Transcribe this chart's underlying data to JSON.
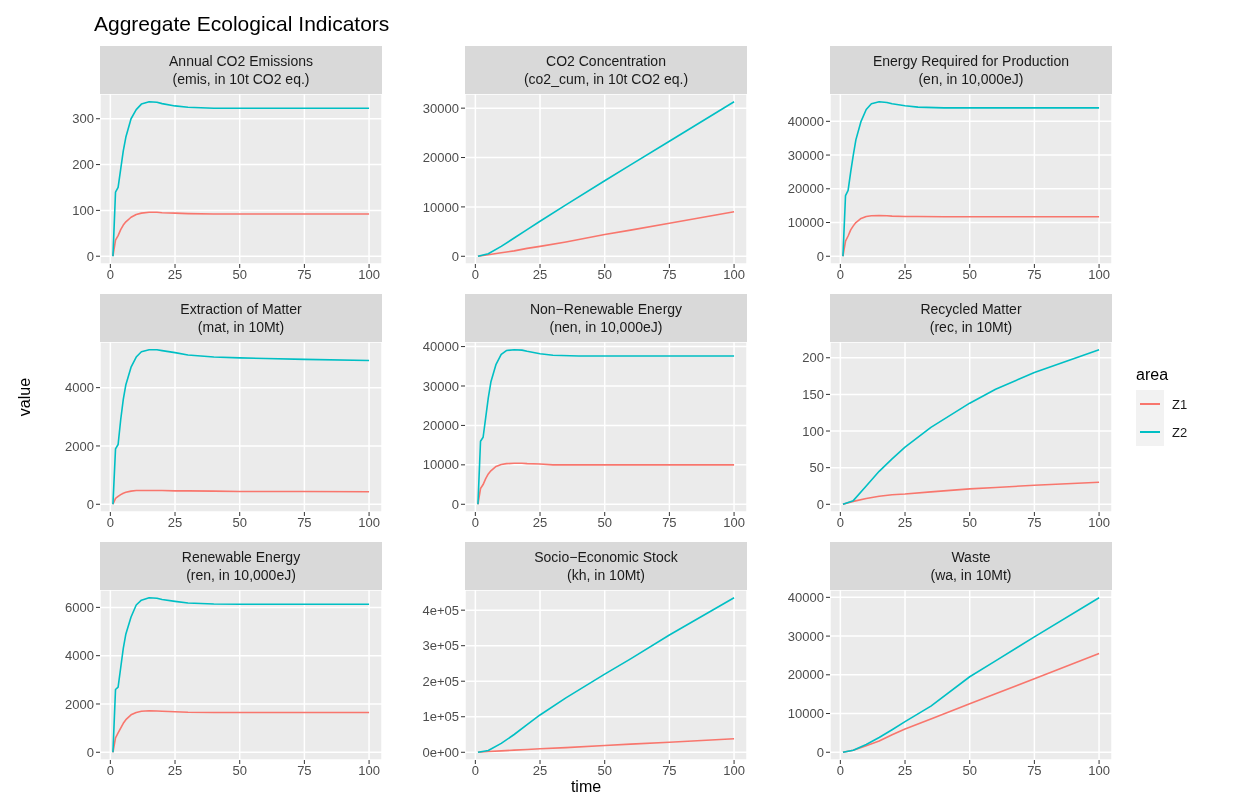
{
  "chart_data": [
    {
      "type": "line",
      "title": "Annual CO2 Emissions\n(emis, in 10t CO2 eq.)",
      "legend": "right",
      "legend_title": "area",
      "annotations": [
        "Aggregate Ecological Indicators"
      ],
      "grid": true,
      "xlim": [
        -4,
        105
      ],
      "xticks": [
        0,
        25,
        50,
        75,
        100
      ],
      "ylim": [
        -17,
        354
      ],
      "yticks": [
        0,
        100,
        200,
        300
      ],
      "x": [
        1,
        2,
        3,
        4,
        5,
        6,
        8,
        10,
        12,
        15,
        18,
        20,
        25,
        30,
        40,
        50,
        60,
        75,
        100
      ],
      "series": [
        {
          "name": "Z1",
          "color": "#f8766d",
          "values": [
            0,
            35,
            45,
            58,
            68,
            75,
            85,
            91,
            94,
            96,
            96,
            95,
            94,
            93,
            92,
            92,
            92,
            92,
            92
          ]
        },
        {
          "name": "Z2",
          "color": "#00bfc4",
          "values": [
            0,
            140,
            150,
            190,
            230,
            260,
            300,
            320,
            332,
            337,
            336,
            333,
            328,
            325,
            323,
            323,
            323,
            323,
            323
          ]
        }
      ]
    },
    {
      "type": "line",
      "title": "CO2 Concentration\n(co2_cum, in 10t CO2 eq.)",
      "grid": true,
      "xlim": [
        -4,
        105
      ],
      "xticks": [
        0,
        25,
        50,
        75,
        100
      ],
      "ylim": [
        -1565,
        32865
      ],
      "yticks": [
        0,
        10000,
        20000,
        30000
      ],
      "x": [
        1,
        5,
        10,
        15,
        20,
        25,
        35,
        50,
        60,
        75,
        100
      ],
      "series": [
        {
          "color": "#f8766d",
          "values": [
            0,
            300,
            700,
            1100,
            1600,
            2000,
            2900,
            4400,
            5300,
            6700,
            9000
          ]
        },
        {
          "color": "#00bfc4",
          "values": [
            0,
            500,
            2000,
            3700,
            5400,
            7100,
            10400,
            15300,
            18500,
            23300,
            31300
          ]
        }
      ]
    },
    {
      "type": "line",
      "title": "Energy Required for Production\n(en, in 10,000eJ)",
      "grid": true,
      "xlim": [
        -4,
        105
      ],
      "xticks": [
        0,
        25,
        50,
        75,
        100
      ],
      "ylim": [
        -2300,
        48100
      ],
      "yticks": [
        0,
        10000,
        20000,
        30000,
        40000
      ],
      "x": [
        1,
        2,
        3,
        4,
        5,
        6,
        8,
        10,
        12,
        15,
        18,
        20,
        25,
        30,
        40,
        50,
        60,
        75,
        100
      ],
      "series": [
        {
          "color": "#f8766d",
          "values": [
            0,
            4500,
            6000,
            7800,
            9000,
            10000,
            11200,
            11800,
            12000,
            12100,
            12000,
            11900,
            11800,
            11800,
            11700,
            11700,
            11700,
            11700,
            11700
          ]
        },
        {
          "color": "#00bfc4",
          "values": [
            0,
            18000,
            19500,
            25000,
            30000,
            34500,
            40000,
            43500,
            45200,
            45800,
            45600,
            45200,
            44600,
            44200,
            44000,
            44000,
            44000,
            44000,
            44000
          ]
        }
      ]
    },
    {
      "type": "line",
      "title": "Extraction of Matter\n(mat, in 10Mt)",
      "ylabel": "value",
      "grid": true,
      "xlim": [
        -4,
        105
      ],
      "xticks": [
        0,
        25,
        50,
        75,
        100
      ],
      "ylim": [
        -265,
        5565
      ],
      "yticks": [
        0,
        2000,
        4000
      ],
      "x": [
        1,
        2,
        3,
        4,
        5,
        6,
        8,
        10,
        12,
        15,
        18,
        20,
        25,
        30,
        40,
        50,
        60,
        75,
        100
      ],
      "series": [
        {
          "color": "#f8766d",
          "values": [
            0,
            200,
            270,
            330,
            380,
            410,
            450,
            470,
            470,
            470,
            470,
            470,
            460,
            460,
            450,
            440,
            440,
            440,
            430
          ]
        },
        {
          "color": "#00bfc4",
          "values": [
            0,
            1900,
            2050,
            2900,
            3600,
            4100,
            4700,
            5050,
            5230,
            5300,
            5300,
            5270,
            5200,
            5120,
            5050,
            5020,
            5000,
            4970,
            4930
          ]
        }
      ]
    },
    {
      "type": "line",
      "title": "Non−Renewable Energy\n(nen, in 10,000eJ)",
      "grid": true,
      "xlim": [
        -4,
        105
      ],
      "xticks": [
        0,
        25,
        50,
        75,
        100
      ],
      "ylim": [
        -1960,
        41160
      ],
      "yticks": [
        0,
        10000,
        20000,
        30000,
        40000
      ],
      "x": [
        1,
        2,
        3,
        4,
        5,
        6,
        8,
        10,
        12,
        15,
        18,
        20,
        25,
        30,
        40,
        50,
        60,
        75,
        100
      ],
      "series": [
        {
          "color": "#f8766d",
          "values": [
            0,
            4000,
            5000,
            6500,
            7700,
            8500,
            9600,
            10100,
            10300,
            10400,
            10400,
            10300,
            10200,
            10000,
            10000,
            10000,
            10000,
            10000,
            10000
          ]
        },
        {
          "color": "#00bfc4",
          "values": [
            0,
            16000,
            17000,
            22000,
            27000,
            31000,
            35500,
            38000,
            39000,
            39200,
            39100,
            38800,
            38200,
            37800,
            37600,
            37600,
            37600,
            37600,
            37600
          ]
        }
      ]
    },
    {
      "type": "line",
      "title": "Recycled Matter\n(rec, in 10Mt)",
      "grid": true,
      "xlim": [
        -4,
        105
      ],
      "xticks": [
        0,
        25,
        50,
        75,
        100
      ],
      "ylim": [
        -10.5,
        221.5
      ],
      "yticks": [
        0,
        50,
        100,
        150,
        200
      ],
      "x": [
        1,
        5,
        10,
        15,
        20,
        25,
        35,
        50,
        60,
        75,
        100
      ],
      "series": [
        {
          "color": "#f8766d",
          "values": [
            0,
            4,
            8,
            11,
            13,
            14,
            17,
            21,
            23,
            26,
            30
          ]
        },
        {
          "color": "#00bfc4",
          "values": [
            0,
            5,
            25,
            45,
            62,
            78,
            105,
            138,
            157,
            180,
            211
          ]
        }
      ]
    },
    {
      "type": "line",
      "title": "Renewable Energy\n(ren, in 10,000eJ)",
      "grid": true,
      "xlim": [
        -4,
        105
      ],
      "xticks": [
        0,
        25,
        50,
        75,
        100
      ],
      "ylim": [
        -320,
        6720
      ],
      "yticks": [
        0,
        2000,
        4000,
        6000
      ],
      "x": [
        1,
        2,
        3,
        4,
        5,
        6,
        8,
        10,
        12,
        15,
        18,
        20,
        25,
        30,
        40,
        50,
        60,
        75,
        100
      ],
      "series": [
        {
          "color": "#f8766d",
          "values": [
            0,
            600,
            800,
            1000,
            1200,
            1350,
            1550,
            1650,
            1700,
            1720,
            1710,
            1700,
            1680,
            1660,
            1650,
            1650,
            1650,
            1650,
            1650
          ]
        },
        {
          "color": "#00bfc4",
          "values": [
            0,
            2600,
            2700,
            3500,
            4300,
            4900,
            5600,
            6100,
            6300,
            6400,
            6380,
            6330,
            6250,
            6180,
            6140,
            6130,
            6130,
            6130,
            6130
          ]
        }
      ]
    },
    {
      "type": "line",
      "title": "Socio−Economic Stock\n(kh, in 10Mt)",
      "xlabel": "time",
      "grid": true,
      "xlim": [
        -4,
        105
      ],
      "xticks": [
        0,
        25,
        50,
        75,
        100
      ],
      "ylim": [
        -21750,
        456750
      ],
      "yticks": [
        {
          "value": 0,
          "label": "0e+00"
        },
        {
          "value": 100000,
          "label": "1e+05"
        },
        {
          "value": 200000,
          "label": "2e+05"
        },
        {
          "value": 300000,
          "label": "3e+05"
        },
        {
          "value": 400000,
          "label": "4e+05"
        }
      ],
      "x": [
        1,
        5,
        10,
        15,
        20,
        25,
        35,
        50,
        60,
        75,
        100
      ],
      "series": [
        {
          "color": "#f8766d",
          "values": [
            0,
            2000,
            4000,
            6000,
            8000,
            10000,
            13000,
            19000,
            23000,
            28000,
            38000
          ]
        },
        {
          "color": "#00bfc4",
          "values": [
            0,
            5000,
            25000,
            50000,
            78000,
            105000,
            153000,
            220000,
            263000,
            330000,
            435000
          ]
        }
      ]
    },
    {
      "type": "line",
      "title": "Waste\n(wa, in 10Mt)",
      "grid": true,
      "xlim": [
        -4,
        105
      ],
      "xticks": [
        0,
        25,
        50,
        75,
        100
      ],
      "ylim": [
        -2000,
        41900
      ],
      "yticks": [
        0,
        10000,
        20000,
        30000,
        40000
      ],
      "x": [
        1,
        5,
        10,
        15,
        20,
        25,
        35,
        50,
        60,
        75,
        100
      ],
      "series": [
        {
          "color": "#f8766d",
          "values": [
            0,
            500,
            1700,
            2900,
            4500,
            6000,
            8600,
            12500,
            15100,
            19000,
            25500
          ]
        },
        {
          "color": "#00bfc4",
          "values": [
            0,
            500,
            2000,
            3800,
            5800,
            7900,
            11900,
            19500,
            23600,
            29800,
            39900
          ]
        }
      ]
    }
  ]
}
